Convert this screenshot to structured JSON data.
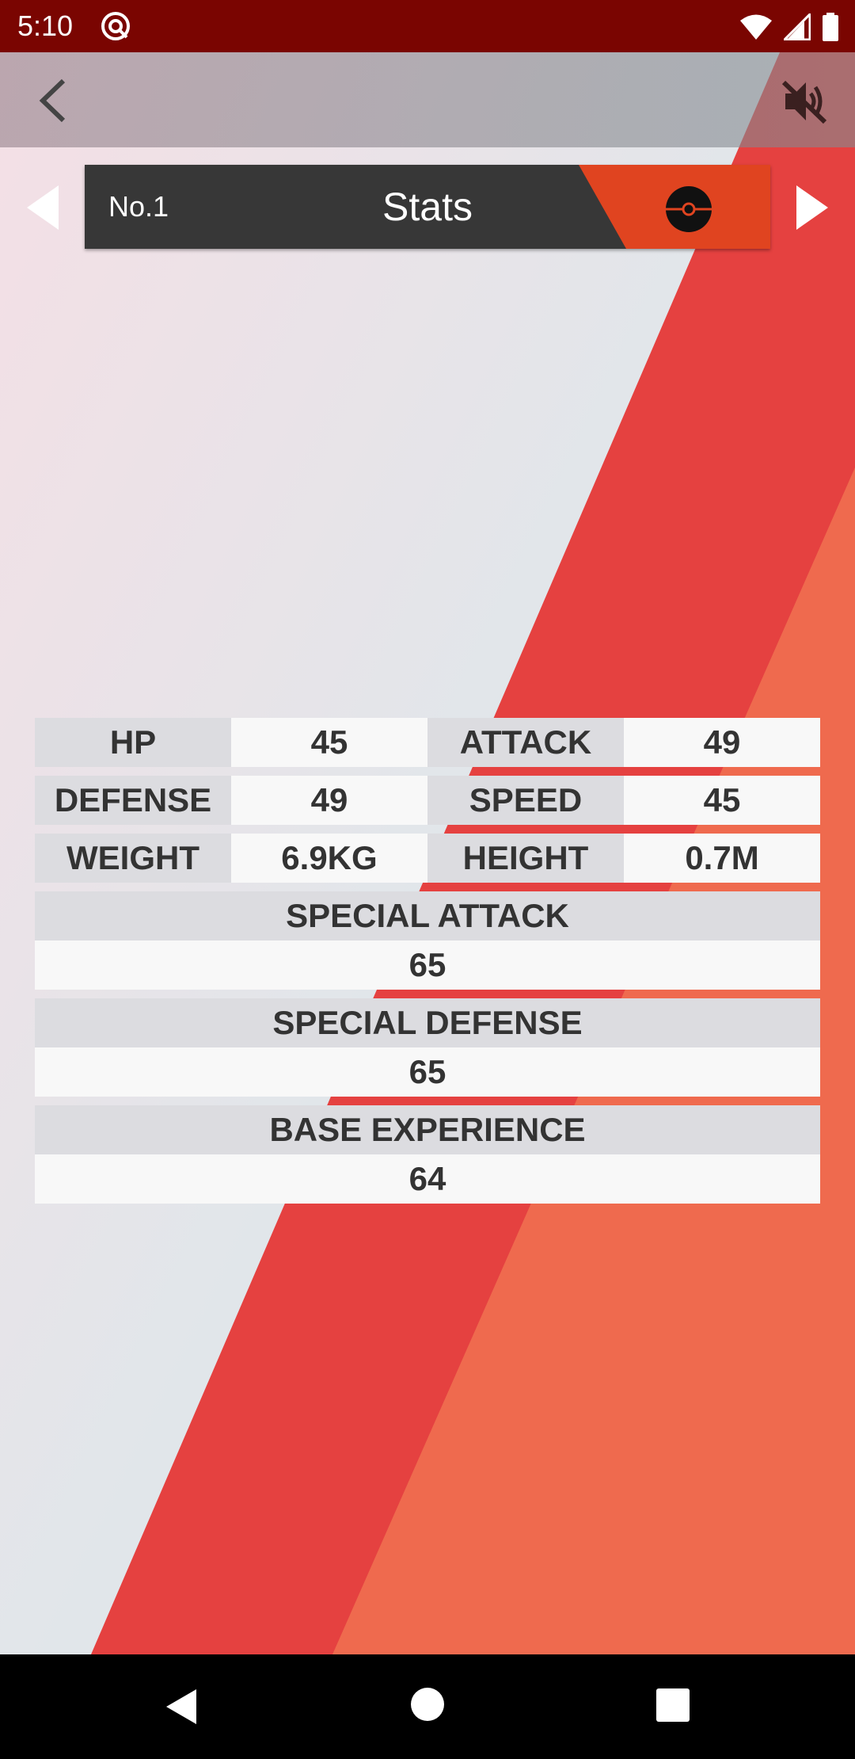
{
  "status_bar": {
    "time": "5:10",
    "left_icon": "hotspot-icon",
    "right_icons": [
      "wifi-icon",
      "cellular-signal-icon",
      "battery-icon"
    ]
  },
  "toolbar": {
    "back_icon": "chevron-left-icon",
    "mute_icon": "volume-off-icon"
  },
  "header": {
    "number": "No.1",
    "title": "Stats",
    "icon": "pokeball-icon",
    "prev_icon": "triangle-left-icon",
    "next_icon": "triangle-right-icon"
  },
  "stats": {
    "hp": {
      "label": "HP",
      "value": "45"
    },
    "attack": {
      "label": "ATTACK",
      "value": "49"
    },
    "defense": {
      "label": "DEFENSE",
      "value": "49"
    },
    "speed": {
      "label": "SPEED",
      "value": "45"
    },
    "weight": {
      "label": "WEIGHT",
      "value": "6.9KG"
    },
    "height": {
      "label": "HEIGHT",
      "value": "0.7M"
    },
    "special_attack": {
      "label": "SPECIAL ATTACK",
      "value": "65"
    },
    "special_defense": {
      "label": "SPECIAL DEFENSE",
      "value": "65"
    },
    "base_experience": {
      "label": "BASE EXPERIENCE",
      "value": "64"
    }
  },
  "nav_bar": {
    "icons": [
      "nav-back-icon",
      "nav-home-icon",
      "nav-recents-icon"
    ]
  },
  "colors": {
    "status_bar": "#7a0501",
    "accent_red": "#e54140",
    "accent_orange": "#ef6a4e",
    "header_dark": "#373737",
    "header_red": "#e04420"
  }
}
